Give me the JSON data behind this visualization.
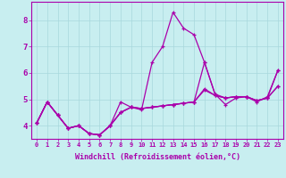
{
  "xlabel": "Windchill (Refroidissement éolien,°C)",
  "background_color": "#c8eef0",
  "grid_color": "#a8d8dc",
  "line_color": "#aa00aa",
  "xlim": [
    -0.5,
    23.5
  ],
  "ylim": [
    3.5,
    8.7
  ],
  "xticks": [
    0,
    1,
    2,
    3,
    4,
    5,
    6,
    7,
    8,
    9,
    10,
    11,
    12,
    13,
    14,
    15,
    16,
    17,
    18,
    19,
    20,
    21,
    22,
    23
  ],
  "yticks": [
    4,
    5,
    6,
    7,
    8
  ],
  "lines": [
    [
      4.1,
      4.9,
      4.4,
      3.9,
      4.0,
      3.7,
      3.65,
      4.0,
      4.9,
      4.7,
      4.6,
      6.4,
      7.0,
      8.3,
      7.7,
      7.45,
      6.4,
      5.2,
      4.8,
      5.05,
      5.1,
      4.9,
      5.1,
      6.1
    ],
    [
      4.1,
      4.9,
      4.4,
      3.9,
      4.0,
      3.7,
      3.65,
      4.0,
      4.5,
      4.7,
      4.65,
      4.7,
      4.75,
      4.8,
      4.85,
      4.9,
      5.35,
      5.15,
      5.05,
      5.1,
      5.1,
      4.95,
      5.05,
      5.5
    ],
    [
      4.1,
      4.9,
      4.4,
      3.9,
      4.0,
      3.7,
      3.65,
      4.0,
      4.5,
      4.7,
      4.65,
      4.7,
      4.75,
      4.8,
      4.85,
      4.9,
      5.4,
      5.15,
      5.05,
      5.1,
      5.1,
      4.95,
      5.05,
      5.5
    ],
    [
      4.1,
      4.9,
      4.4,
      3.9,
      4.0,
      3.7,
      3.65,
      4.0,
      4.5,
      4.7,
      4.65,
      4.7,
      4.75,
      4.8,
      4.85,
      4.9,
      6.4,
      5.2,
      5.05,
      5.1,
      5.1,
      4.95,
      5.05,
      6.1
    ]
  ],
  "marker": "+",
  "markersize": 3.5,
  "linewidth": 0.9,
  "xlabel_fontsize": 6,
  "xtick_fontsize": 5,
  "ytick_fontsize": 6.5
}
